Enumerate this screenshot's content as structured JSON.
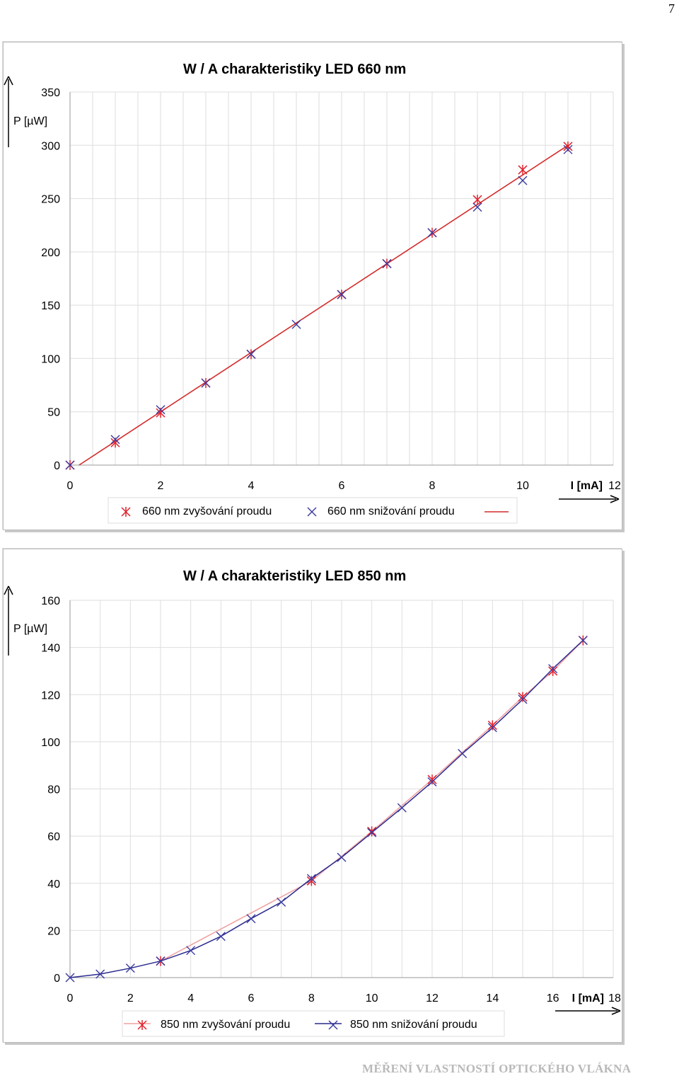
{
  "page_number": "7",
  "footer": "MĚŘENÍ VLASTNOSTÍ OPTICKÉHO VLÁKNA",
  "chart_data": [
    {
      "type": "scatter",
      "title": "W / A charakteristiky LED 660 nm",
      "xlabel": "I [mA]",
      "ylabel": "P [µW]",
      "xlim": [
        0,
        12
      ],
      "ylim": [
        0,
        350
      ],
      "xticks": [
        0,
        2,
        4,
        6,
        8,
        10,
        12
      ],
      "yticks": [
        0,
        50,
        100,
        150,
        200,
        250,
        300,
        350
      ],
      "grid": true,
      "legend_position": "bottom",
      "series": [
        {
          "name": "660 nm zvyšování proudu",
          "marker": "asterisk",
          "color": "#e0202a",
          "x": [
            0,
            1,
            2,
            3,
            4,
            6,
            7,
            8,
            9,
            10,
            11
          ],
          "y": [
            0,
            21,
            49,
            77,
            104,
            160,
            189,
            218,
            249,
            277,
            299
          ]
        },
        {
          "name": "660 nm snižování proudu",
          "marker": "x",
          "color": "#3a3aa0",
          "x": [
            0,
            1,
            2,
            3,
            4,
            5,
            6,
            7,
            8,
            9,
            10,
            11
          ],
          "y": [
            0,
            24,
            52,
            77,
            104,
            132,
            160,
            189,
            218,
            242,
            267,
            296
          ]
        },
        {
          "name": "",
          "marker": "none",
          "color": "#d42a2a",
          "x": [
            0.2,
            11
          ],
          "y": [
            0,
            300
          ]
        }
      ]
    },
    {
      "type": "line",
      "title": "W / A charakteristiky LED 850 nm",
      "xlabel": "I [mA]",
      "ylabel": "P [µW]",
      "xlim": [
        0,
        18
      ],
      "ylim": [
        0,
        160
      ],
      "xticks": [
        0,
        2,
        4,
        6,
        8,
        10,
        12,
        14,
        16,
        18
      ],
      "yticks": [
        0,
        20,
        40,
        60,
        80,
        100,
        120,
        140,
        160
      ],
      "grid": true,
      "legend_position": "bottom",
      "series": [
        {
          "name": "850 nm zvyšování proudu",
          "marker": "asterisk",
          "color": "#e0202a",
          "line_color": "#f0a0a0",
          "x": [
            3,
            8,
            10,
            12,
            14,
            15,
            16,
            17
          ],
          "y": [
            7,
            41,
            62,
            84,
            107,
            119,
            130,
            143
          ]
        },
        {
          "name": "850 nm snižování proudu",
          "marker": "x",
          "color": "#3a3aa0",
          "line_color": "#2a2a8e",
          "x": [
            0,
            1,
            2,
            3,
            4,
            5,
            6,
            7,
            8,
            9,
            10,
            11,
            12,
            13,
            14,
            15,
            16,
            17
          ],
          "y": [
            0,
            1.5,
            4,
            7,
            11.5,
            17.5,
            25,
            32,
            42,
            51,
            61.5,
            72,
            83,
            95,
            106,
            118,
            131,
            143
          ]
        }
      ]
    }
  ]
}
